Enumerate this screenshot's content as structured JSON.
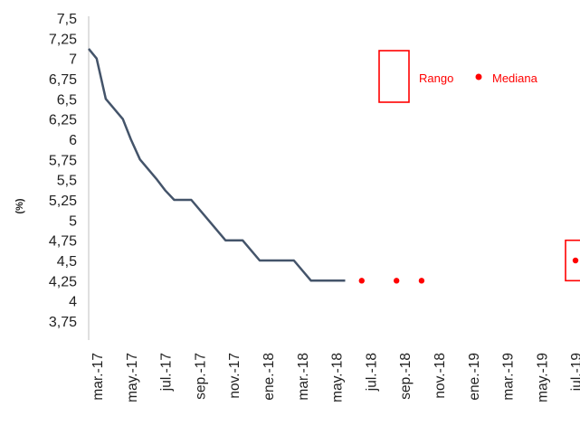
{
  "chart_data": {
    "type": "line",
    "ylabel": "(%)",
    "ylim": [
      3.75,
      7.5
    ],
    "y_ticks": [
      "7,5",
      "7,25",
      "7",
      "6,75",
      "6,5",
      "6,25",
      "6",
      "5,75",
      "5,5",
      "5,25",
      "5",
      "4,75",
      "4,5",
      "4,25",
      "4",
      "3,75"
    ],
    "x_ticks": [
      "mar.-17",
      "may.-17",
      "jul.-17",
      "sep.-17",
      "nov.-17",
      "ene.-18",
      "mar.-18",
      "may.-18",
      "jul.-18",
      "sep.-18",
      "nov.-18",
      "ene.-19",
      "mar.-19",
      "may.-19",
      "jul.-19"
    ],
    "grid": false,
    "legend_position": "top-right",
    "colors": {
      "line": "#44546a",
      "median": "#ff0000",
      "range": "#ff0000"
    },
    "series": [
      {
        "kind": "line",
        "x": [
          "2017-03-01",
          "2017-03-15",
          "2017-04-01",
          "2017-05-01",
          "2017-05-15",
          "2017-06-01",
          "2017-07-01",
          "2017-07-15",
          "2017-08-01",
          "2017-09-01",
          "2017-10-01",
          "2017-11-01",
          "2017-11-15",
          "2017-12-01",
          "2018-01-01",
          "2018-02-01",
          "2018-03-01",
          "2018-04-01",
          "2018-05-01",
          "2018-06-01"
        ],
        "values": [
          7.12,
          7.0,
          6.5,
          6.25,
          6.0,
          5.75,
          5.5,
          5.37,
          5.25,
          5.25,
          5.0,
          4.75,
          4.75,
          4.75,
          4.5,
          4.5,
          4.5,
          4.25,
          4.25,
          4.25
        ]
      },
      {
        "name": "Mediana",
        "kind": "scatter",
        "x": [
          "2018-06-30",
          "2018-09-01",
          "2018-10-15",
          "2019-07-15"
        ],
        "values": [
          4.25,
          4.25,
          4.25,
          4.5
        ]
      },
      {
        "name": "Rango",
        "kind": "range",
        "x": [
          "2019-07-15"
        ],
        "low": [
          4.25
        ],
        "high": [
          4.75
        ]
      }
    ],
    "legend": {
      "range_label": "Rango",
      "median_label": "Mediana"
    }
  }
}
